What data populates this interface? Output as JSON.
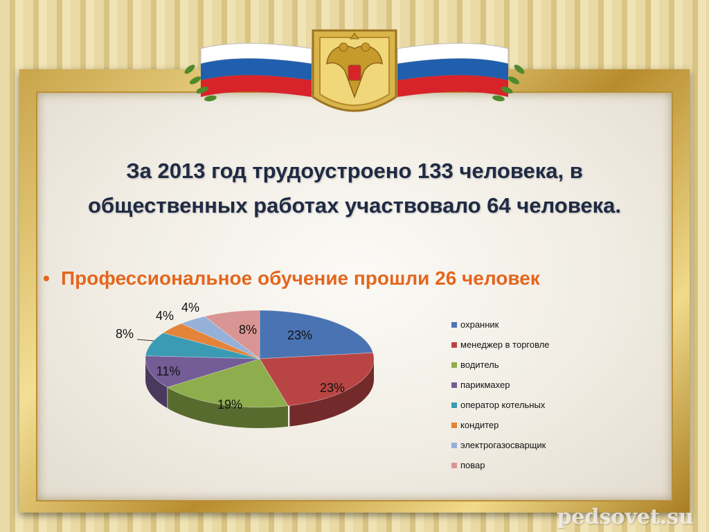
{
  "slide": {
    "heading_line1": "За 2013 год трудоустроено 133 человека, в",
    "heading_line2": "общественных работах участвовало 64 человека.",
    "bullet_symbol": "•",
    "bullet_text": "Профессиональное обучение прошли 26 человек",
    "watermark": "pedsovet.su"
  },
  "colors": {
    "heading": "#1f2a44",
    "bullet": "#e4661e",
    "flag_white": "#ffffff",
    "flag_blue": "#1f5fae",
    "flag_red": "#d8232a"
  },
  "icons": {
    "emblem": "russian-coat-of-arms-icon",
    "flags": "russian-flag-icon",
    "laurels": "laurel-branch-icon"
  },
  "chart_data": {
    "type": "pie",
    "style": "3d",
    "legend_position": "right",
    "categories": [
      "охранник",
      "менеджер в торговле",
      "водитель",
      "парикмахер",
      "оператор котельных",
      "кондитер",
      "электрогазосварщик",
      "повар"
    ],
    "values": [
      23,
      23,
      19,
      11,
      8,
      4,
      4,
      8
    ],
    "labels": [
      "23%",
      "23%",
      "19%",
      "11%",
      "8%",
      "4%",
      "4%",
      "8%"
    ],
    "colors": [
      "#4a73b3",
      "#b84543",
      "#8ead4c",
      "#745c96",
      "#3b9bb5",
      "#e3843a",
      "#95b0d9",
      "#d99593"
    ]
  }
}
